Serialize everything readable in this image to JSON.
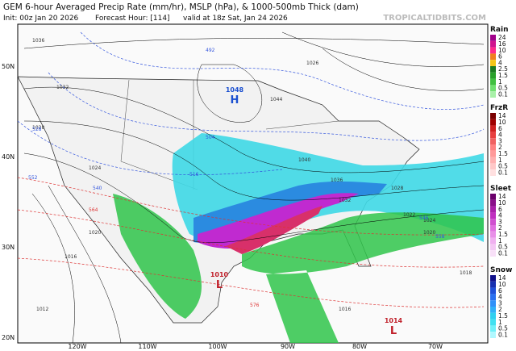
{
  "header": {
    "title": "GEM 6-hour Averaged Precip Rate (mm/hr), MSLP (hPa), & 1000-500mb Thick (dam)",
    "init": "Init: 00z Jan 20 2026",
    "forecast_hour": "Forecast Hour: [114]",
    "valid": "valid at 18z Sat, Jan 24 2026",
    "source": "TROPICALTIDBITS.COM"
  },
  "map": {
    "lat_labels": [
      "50N",
      "40N",
      "30N",
      "20N"
    ],
    "lon_labels": [
      "120W",
      "110W",
      "100W",
      "90W",
      "80W",
      "70W"
    ],
    "pressure_centers": [
      {
        "pressure": "1048",
        "symbol": "H"
      },
      {
        "pressure": "1010",
        "symbol": "L"
      },
      {
        "pressure": "1014",
        "symbol": "L"
      }
    ],
    "isobar_labels": [
      "1036",
      "1032",
      "1028",
      "1024",
      "1020",
      "1016",
      "1012",
      "1044",
      "1040",
      "1036",
      "1032",
      "1028",
      "1024",
      "1020",
      "1018",
      "1016",
      "1022",
      "1026"
    ],
    "thickness_labels": [
      "492",
      "504",
      "516",
      "528",
      "540",
      "552",
      "564",
      "576",
      "546",
      "558"
    ]
  },
  "legends": [
    {
      "title": "Rain",
      "labels": [
        "24",
        "16",
        "10",
        "6",
        "4",
        "2.5",
        "1.5",
        "1",
        "0.5",
        "0.1"
      ]
    },
    {
      "title": "FrzR",
      "labels": [
        "14",
        "10",
        "6",
        "4",
        "3",
        "2",
        "1.5",
        "1",
        "0.5",
        "0.1"
      ]
    },
    {
      "title": "Sleet",
      "labels": [
        "14",
        "10",
        "6",
        "4",
        "3",
        "2",
        "1.5",
        "1",
        "0.5",
        "0.1"
      ]
    },
    {
      "title": "Snow",
      "labels": [
        "14",
        "10",
        "6",
        "4",
        "3",
        "2",
        "1.5",
        "1",
        "0.5",
        "0.1"
      ]
    }
  ]
}
